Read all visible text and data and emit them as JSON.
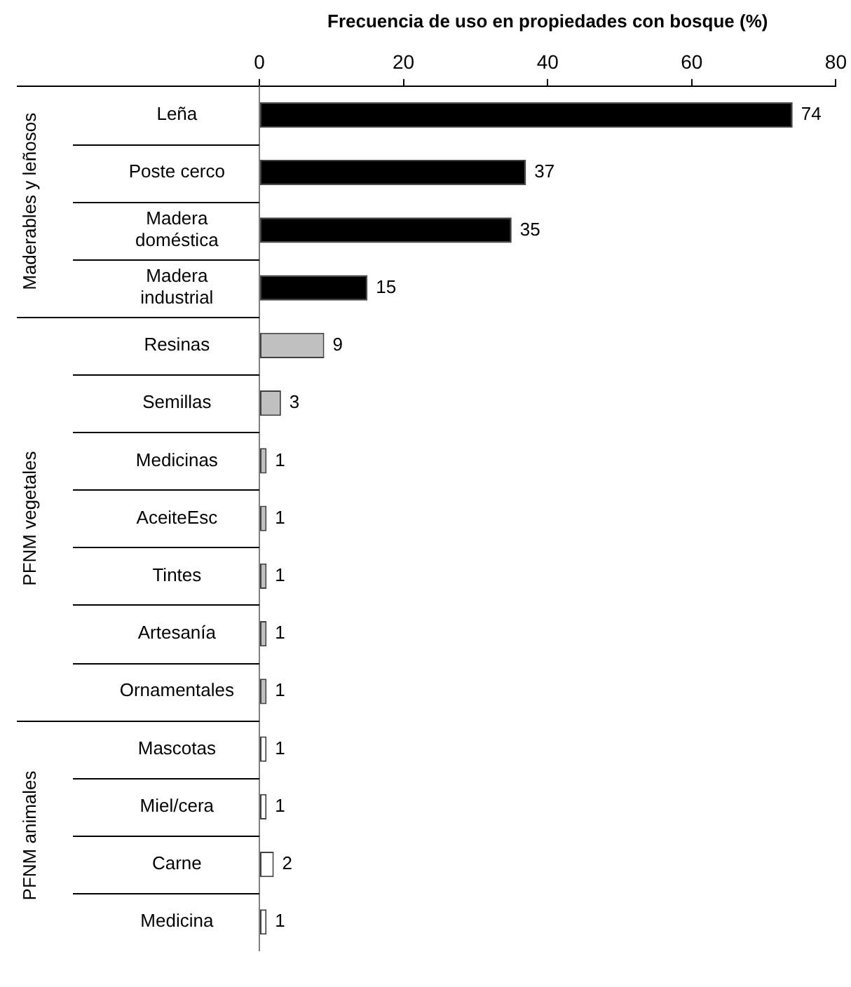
{
  "chart_data": {
    "type": "bar",
    "orientation": "horizontal",
    "xlabel": "Frecuencia de uso en propiedades con bosque (%)",
    "categories": [
      "Leña",
      "Poste cerco",
      "Madera doméstica",
      "Madera industrial",
      "Resinas",
      "Semillas",
      "Medicinas",
      "AceiteEsc",
      "Tintes",
      "Artesanía",
      "Ornamentales",
      "Mascotas",
      "Miel/cera",
      "Carne",
      "Medicina"
    ],
    "values": [
      74,
      37,
      35,
      15,
      9,
      3,
      1,
      1,
      1,
      1,
      1,
      1,
      1,
      2,
      1
    ],
    "colors": [
      "#000000",
      "#000000",
      "#000000",
      "#000000",
      "#c0c0c0",
      "#c0c0c0",
      "#c0c0c0",
      "#c0c0c0",
      "#c0c0c0",
      "#c0c0c0",
      "#c0c0c0",
      "#ffffff",
      "#ffffff",
      "#ffffff",
      "#ffffff"
    ],
    "annotations": [
      "Maderables y leñosos",
      "PFNM vegetales",
      "PFNM animales"
    ],
    "xlim": [
      0,
      80
    ],
    "xticks": [
      0,
      20,
      40,
      60,
      80
    ],
    "data_labels": true
  }
}
